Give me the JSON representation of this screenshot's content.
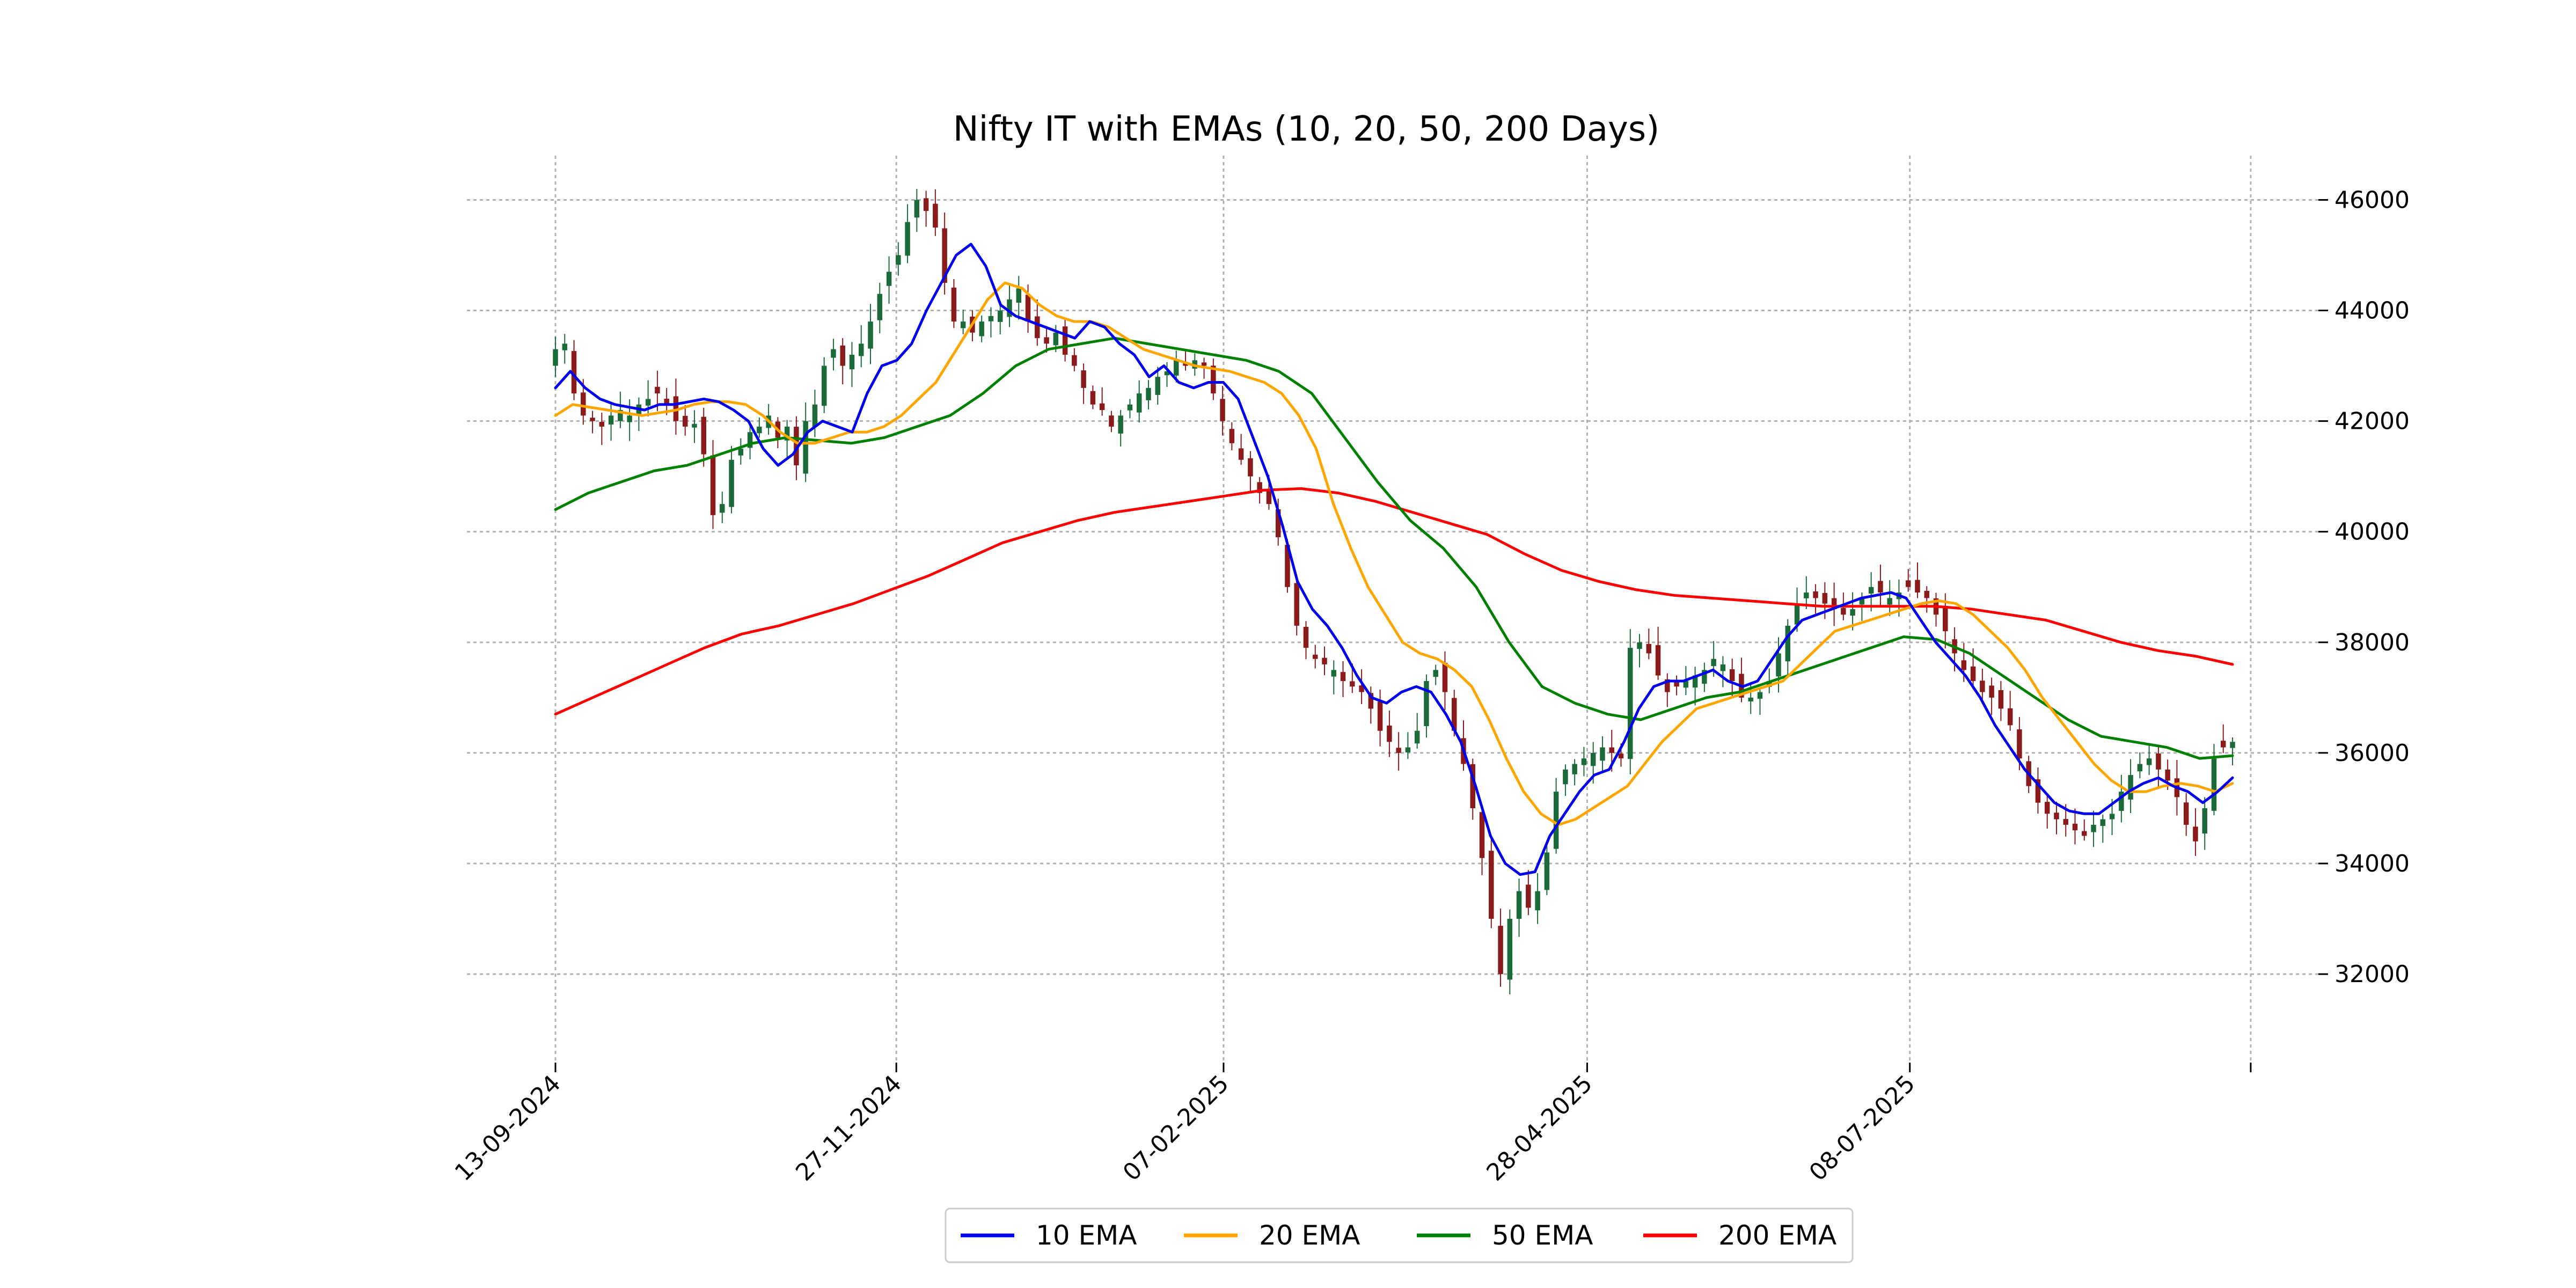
{
  "chart_data": {
    "type": "candlestick",
    "title": "Nifty IT with EMAs (10, 20, 50, 200 Days)",
    "xlabel": "",
    "ylabel": "",
    "x_start": "13-09-2024",
    "x_end": "17-09-2025",
    "x_ticks": [
      "13-09-2024",
      "27-11-2024",
      "07-02-2025",
      "28-04-2025",
      "08-07-2025"
    ],
    "y_ticks": [
      32000,
      34000,
      36000,
      38000,
      40000,
      42000,
      44000,
      46000
    ],
    "ylim": [
      30400,
      46800
    ],
    "y_axis_side": "right",
    "grid": true,
    "legend_position": "bottom",
    "candle_colors": {
      "up": "#1b6b3a",
      "down": "#8b1a1a"
    },
    "price_closes": [
      43300,
      43400,
      42500,
      42100,
      42000,
      41900,
      42100,
      42200,
      42100,
      42300,
      42400,
      42500,
      42300,
      42000,
      41900,
      41950,
      41400,
      40300,
      40500,
      41300,
      41500,
      41800,
      41900,
      42100,
      41700,
      41900,
      41200,
      42000,
      42300,
      43000,
      43300,
      43000,
      43200,
      43400,
      43800,
      44300,
      44700,
      45000,
      45600,
      46000,
      45800,
      45500,
      44500,
      43800,
      43800,
      43600,
      43800,
      43900,
      44000,
      44200,
      44400,
      43800,
      43500,
      43400,
      43600,
      43200,
      43000,
      42600,
      42300,
      42200,
      41900,
      42100,
      42300,
      42500,
      42600,
      42800,
      42900,
      43100,
      43000,
      43100,
      43000,
      42500,
      42000,
      41600,
      41300,
      41000,
      40700,
      40500,
      39900,
      39000,
      38300,
      37900,
      37700,
      37600,
      37500,
      37300,
      37200,
      37100,
      36800,
      36400,
      36200,
      36000,
      36100,
      36400,
      37300,
      37500,
      37100,
      36400,
      35800,
      35000,
      34100,
      33000,
      32000,
      33000,
      33500,
      33200,
      33500,
      34200,
      35300,
      35700,
      35800,
      35900,
      36000,
      36100,
      36000,
      35900,
      37900,
      38000,
      37800,
      37400,
      37100,
      37200,
      37300,
      37400,
      37500,
      37700,
      37600,
      37300,
      37000,
      37000,
      37100,
      37300,
      37800,
      38300,
      38700,
      38900,
      38800,
      38700,
      38600,
      38500,
      38600,
      38800,
      39000,
      38900,
      38800,
      38900,
      39000,
      38900,
      38800,
      38500,
      38200,
      37800,
      37500,
      37300,
      37100,
      37000,
      36800,
      36500,
      35900,
      35400,
      35100,
      34900,
      34800,
      34700,
      34600,
      34500,
      34700,
      34800,
      34900,
      35300,
      35600,
      35800,
      35900,
      35700,
      35500,
      35200,
      34700,
      34400,
      35000,
      35900,
      36100,
      36200
    ],
    "series": [
      {
        "name": "10 EMA",
        "color": "#0000ee",
        "values": [
          42600,
          42900,
          42600,
          42400,
          42300,
          42250,
          42200,
          42300,
          42300,
          42350,
          42400,
          42350,
          42200,
          42000,
          41500,
          41200,
          41400,
          41800,
          42000,
          41900,
          41800,
          42500,
          43000,
          43100,
          43400,
          44000,
          44500,
          45000,
          45200,
          44800,
          44100,
          43900,
          43800,
          43700,
          43600,
          43500,
          43800,
          43700,
          43400,
          43200,
          42800,
          43000,
          42700,
          42600,
          42700,
          42700,
          42400,
          41700,
          41000,
          40100,
          39100,
          38600,
          38300,
          37900,
          37400,
          37000,
          36900,
          37100,
          37200,
          37100,
          36700,
          36200,
          35400,
          34500,
          34000,
          33800,
          33850,
          34500,
          34900,
          35300,
          35600,
          35700,
          36200,
          36800,
          37200,
          37300,
          37300,
          37400,
          37500,
          37300,
          37200,
          37300,
          37700,
          38100,
          38400,
          38500,
          38600,
          38700,
          38800,
          38850,
          38900,
          38800,
          38400,
          38000,
          37700,
          37400,
          37000,
          36500,
          36100,
          35700,
          35400,
          35100,
          34950,
          34900,
          34900,
          35100,
          35300,
          35450,
          35550,
          35400,
          35300,
          35100,
          35300,
          35550
        ]
      },
      {
        "name": "20 EMA",
        "color": "#ffa500",
        "values": [
          42100,
          42300,
          42250,
          42200,
          42150,
          42100,
          42150,
          42200,
          42300,
          42350,
          42350,
          42300,
          42100,
          41800,
          41600,
          41600,
          41700,
          41800,
          41800,
          41900,
          42100,
          42400,
          42700,
          43200,
          43700,
          44200,
          44500,
          44400,
          44100,
          43900,
          43800,
          43800,
          43700,
          43500,
          43300,
          43200,
          43100,
          43000,
          42950,
          42900,
          42800,
          42700,
          42500,
          42100,
          41500,
          40500,
          39700,
          39000,
          38500,
          38000,
          37800,
          37700,
          37500,
          37200,
          36600,
          35900,
          35300,
          34900,
          34700,
          34800,
          35000,
          35200,
          35400,
          35800,
          36200,
          36500,
          36800,
          36900,
          37000,
          37100,
          37200,
          37300,
          37600,
          37900,
          38200,
          38300,
          38400,
          38500,
          38600,
          38700,
          38750,
          38700,
          38500,
          38200,
          37900,
          37500,
          37000,
          36600,
          36200,
          35800,
          35500,
          35300,
          35300,
          35400,
          35450,
          35400,
          35300,
          35450
        ]
      },
      {
        "name": "50 EMA",
        "color": "#008000",
        "values": [
          40400,
          40700,
          40900,
          41100,
          41200,
          41400,
          41600,
          41700,
          41650,
          41600,
          41700,
          41900,
          42100,
          42500,
          43000,
          43300,
          43400,
          43500,
          43400,
          43300,
          43200,
          43100,
          42900,
          42500,
          41700,
          40900,
          40200,
          39700,
          39000,
          38000,
          37200,
          36900,
          36700,
          36600,
          36800,
          37000,
          37100,
          37300,
          37500,
          37700,
          37900,
          38100,
          38050,
          37800,
          37400,
          37000,
          36600,
          36300,
          36200,
          36100,
          35900,
          35950
        ]
      },
      {
        "name": "200 EMA",
        "color": "#ff0000",
        "values": [
          36700,
          37000,
          37300,
          37600,
          37900,
          38150,
          38300,
          38500,
          38700,
          38950,
          39200,
          39500,
          39800,
          40000,
          40200,
          40350,
          40450,
          40550,
          40650,
          40750,
          40780,
          40700,
          40550,
          40350,
          40150,
          39950,
          39600,
          39300,
          39100,
          38950,
          38850,
          38800,
          38750,
          38700,
          38650,
          38650,
          38650,
          38650,
          38600,
          38500,
          38400,
          38200,
          38000,
          37850,
          37750,
          37600
        ]
      }
    ]
  },
  "legend": {
    "items": [
      {
        "label": "10 EMA",
        "color": "#0000ee"
      },
      {
        "label": "20 EMA",
        "color": "#ffa500"
      },
      {
        "label": "50 EMA",
        "color": "#008000"
      },
      {
        "label": "200 EMA",
        "color": "#ff0000"
      }
    ]
  }
}
